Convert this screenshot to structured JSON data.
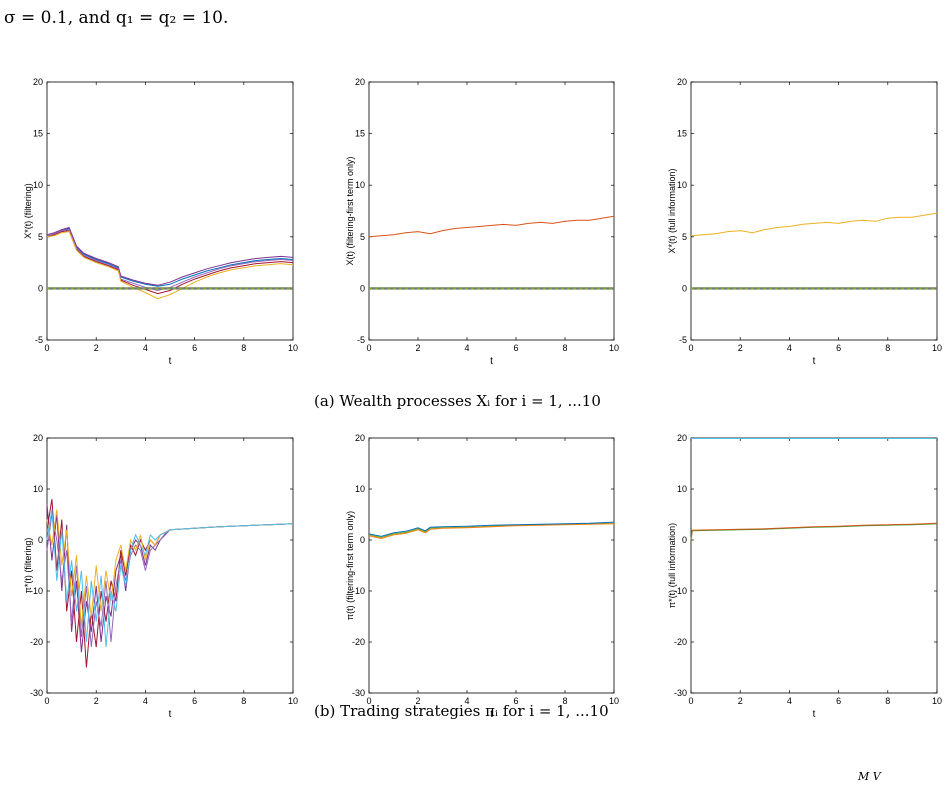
{
  "header_text": "σ = 0.1, and q₁ = q₂ = 10.",
  "captions": {
    "a": "(a) Wealth processes Xᵢ for i = 1, ...10",
    "b": "(b) Trading strategies πᵢ for i = 1, ...10"
  },
  "footer_fragment": "M     V",
  "colors": [
    "#0072bd",
    "#d95319",
    "#edb120",
    "#7e2f8e",
    "#77ac30",
    "#4dbeee",
    "#a2142f",
    "#ff7f0e",
    "#2ca02c",
    "#9467bd"
  ],
  "chart_data": [
    {
      "type": "line",
      "ylabel": "X*(t) (filtering)",
      "xlabel": "t",
      "xlim": [
        0,
        10
      ],
      "ylim": [
        -5,
        20
      ],
      "xticks": [
        0,
        2,
        4,
        6,
        8,
        10
      ],
      "yticks": [
        -5,
        0,
        5,
        10,
        15,
        20
      ],
      "zero_line": true,
      "series": [
        {
          "x": [
            0,
            0.3,
            0.6,
            0.9,
            1.0,
            1.2,
            1.5,
            2.0,
            2.5,
            2.9,
            3.0,
            3.5,
            4.0,
            4.5,
            5.0,
            5.5,
            6.0,
            6.5,
            7.0,
            7.5,
            8.0,
            8.5,
            9.0,
            9.5,
            10.0
          ],
          "y": [
            5.1,
            5.3,
            5.6,
            5.8,
            5.2,
            4.0,
            3.3,
            2.8,
            2.4,
            2.0,
            1.1,
            0.7,
            0.4,
            0.2,
            0.4,
            0.9,
            1.3,
            1.7,
            2.0,
            2.3,
            2.5,
            2.7,
            2.8,
            2.9,
            2.8
          ]
        },
        {
          "x": [
            0,
            0.3,
            0.6,
            0.9,
            1.0,
            1.2,
            1.5,
            2.0,
            2.5,
            2.9,
            3.0,
            3.5,
            4.0,
            4.5,
            5.0,
            5.5,
            6.0,
            6.5,
            7.0,
            7.5,
            8.0,
            8.5,
            9.0,
            9.5,
            10.0
          ],
          "y": [
            5.2,
            5.4,
            5.7,
            5.9,
            5.3,
            4.1,
            3.4,
            2.9,
            2.5,
            2.1,
            1.2,
            0.8,
            0.5,
            0.3,
            0.6,
            1.1,
            1.5,
            1.9,
            2.2,
            2.5,
            2.7,
            2.9,
            3.0,
            3.1,
            3.0
          ]
        },
        {
          "x": [
            0,
            0.3,
            0.6,
            0.9,
            1.0,
            1.2,
            1.5,
            2.0,
            2.5,
            2.9,
            3.0,
            3.5,
            4.0,
            4.5,
            5.0,
            5.5,
            6.0,
            6.5,
            7.0,
            7.5,
            8.0,
            8.5,
            9.0,
            9.5,
            10.0
          ],
          "y": [
            5.0,
            5.2,
            5.5,
            5.6,
            5.0,
            3.8,
            3.1,
            2.6,
            2.2,
            1.8,
            0.8,
            0.3,
            -0.1,
            -0.5,
            -0.2,
            0.4,
            0.9,
            1.3,
            1.7,
            2.0,
            2.2,
            2.4,
            2.5,
            2.6,
            2.5
          ]
        },
        {
          "x": [
            0,
            0.3,
            0.6,
            0.9,
            1.0,
            1.2,
            1.5,
            2.0,
            2.5,
            2.9,
            3.0,
            3.5,
            4.0,
            4.5,
            5.0,
            5.5,
            6.0,
            6.5,
            7.0,
            7.5,
            8.0,
            8.5,
            9.0,
            9.5,
            10.0
          ],
          "y": [
            5.1,
            5.3,
            5.6,
            5.7,
            5.1,
            3.9,
            3.2,
            2.7,
            2.3,
            1.9,
            0.9,
            0.5,
            0.1,
            -0.2,
            0.1,
            0.6,
            1.1,
            1.5,
            1.9,
            2.2,
            2.4,
            2.6,
            2.7,
            2.8,
            2.7
          ]
        },
        {
          "x": [
            0,
            0.3,
            0.6,
            0.9,
            1.0,
            1.2,
            1.5,
            2.0,
            2.5,
            2.9,
            3.0,
            3.5,
            4.0,
            4.5,
            5.0,
            5.5,
            6.0,
            6.5,
            7.0,
            7.5,
            8.0,
            8.5,
            9.0,
            9.5,
            10.0
          ],
          "y": [
            5.0,
            5.1,
            5.4,
            5.5,
            4.9,
            3.7,
            3.0,
            2.5,
            2.1,
            1.7,
            0.7,
            0.1,
            -0.4,
            -1.0,
            -0.6,
            0.0,
            0.6,
            1.1,
            1.5,
            1.8,
            2.0,
            2.2,
            2.3,
            2.4,
            2.3
          ]
        }
      ]
    },
    {
      "type": "line",
      "ylabel": "X(t) (filtering-first term only)",
      "xlabel": "t",
      "xlim": [
        0,
        10
      ],
      "ylim": [
        -5,
        20
      ],
      "xticks": [
        0,
        2,
        4,
        6,
        8,
        10
      ],
      "yticks": [
        -5,
        0,
        5,
        10,
        15,
        20
      ],
      "zero_line": true,
      "series": [
        {
          "x": [
            0,
            0.5,
            1.0,
            1.5,
            2.0,
            2.5,
            3.0,
            3.5,
            4.0,
            4.5,
            5.0,
            5.5,
            6.0,
            6.5,
            7.0,
            7.5,
            8.0,
            8.5,
            9.0,
            9.5,
            10.0
          ],
          "y": [
            5.0,
            5.1,
            5.2,
            5.4,
            5.5,
            5.3,
            5.6,
            5.8,
            5.9,
            6.0,
            6.1,
            6.2,
            6.1,
            6.3,
            6.4,
            6.3,
            6.5,
            6.6,
            6.6,
            6.8,
            7.0
          ]
        }
      ]
    },
    {
      "type": "line",
      "ylabel": "X*(t) (full information)",
      "xlabel": "t",
      "xlim": [
        0,
        10
      ],
      "ylim": [
        -5,
        20
      ],
      "xticks": [
        0,
        2,
        4,
        6,
        8,
        10
      ],
      "yticks": [
        -5,
        0,
        5,
        10,
        15,
        20
      ],
      "zero_line": true,
      "series": [
        {
          "x": [
            0,
            0.5,
            1.0,
            1.5,
            2.0,
            2.5,
            3.0,
            3.5,
            4.0,
            4.5,
            5.0,
            5.5,
            6.0,
            6.5,
            7.0,
            7.5,
            8.0,
            8.5,
            9.0,
            9.5,
            10.0
          ],
          "y": [
            5.1,
            5.2,
            5.3,
            5.5,
            5.6,
            5.4,
            5.7,
            5.9,
            6.0,
            6.2,
            6.3,
            6.4,
            6.3,
            6.5,
            6.6,
            6.5,
            6.8,
            6.9,
            6.9,
            7.1,
            7.3
          ]
        }
      ]
    },
    {
      "type": "line",
      "ylabel": "π*(t) (filtering)",
      "xlabel": "t",
      "xlim": [
        0,
        10
      ],
      "ylim": [
        -30,
        20
      ],
      "xticks": [
        0,
        2,
        4,
        6,
        8,
        10
      ],
      "yticks": [
        -30,
        -20,
        -10,
        0,
        10,
        20
      ],
      "series": [
        {
          "x": [
            0,
            0.2,
            0.4,
            0.6,
            0.8,
            1.0,
            1.2,
            1.4,
            1.6,
            1.8,
            2.0,
            2.2,
            2.4,
            2.6,
            2.8,
            3.0,
            3.2,
            3.4,
            3.6,
            3.8,
            4.0,
            4.2,
            4.4,
            4.6,
            4.8,
            5.0,
            6.0,
            7.0,
            8.0,
            9.0,
            10.0
          ],
          "y": [
            7,
            -4,
            5,
            -10,
            3,
            -18,
            -8,
            -22,
            -12,
            -18,
            -9,
            -20,
            -11,
            -15,
            -6,
            -3,
            -10,
            -2,
            0,
            -1,
            -5,
            -1,
            -2,
            0,
            1,
            2.0,
            2.3,
            2.6,
            2.8,
            3.0,
            3.2
          ]
        },
        {
          "x": [
            0,
            0.2,
            0.4,
            0.6,
            0.8,
            1.0,
            1.2,
            1.4,
            1.6,
            1.8,
            2.0,
            2.2,
            2.4,
            2.6,
            2.8,
            3.0,
            3.2,
            3.4,
            3.6,
            3.8,
            4.0,
            4.2,
            4.4,
            4.6,
            4.8,
            5.0,
            6.0,
            7.0,
            8.0,
            9.0,
            10.0
          ],
          "y": [
            2,
            8,
            -6,
            4,
            -14,
            -6,
            -20,
            -10,
            -25,
            -14,
            -21,
            -10,
            -16,
            -8,
            -12,
            -2,
            -7,
            -1,
            -3,
            0,
            -2,
            0,
            -1,
            1,
            1.5,
            2.0,
            2.3,
            2.6,
            2.8,
            3.0,
            3.2
          ]
        },
        {
          "x": [
            0,
            0.2,
            0.4,
            0.6,
            0.8,
            1.0,
            1.2,
            1.4,
            1.6,
            1.8,
            2.0,
            2.2,
            2.4,
            2.6,
            2.8,
            3.0,
            3.2,
            3.4,
            3.6,
            3.8,
            4.0,
            4.2,
            4.4,
            4.6,
            4.8,
            5.0,
            6.0,
            7.0,
            8.0,
            9.0,
            10.0
          ],
          "y": [
            -2,
            5,
            0,
            -8,
            -2,
            -16,
            -5,
            -19,
            -9,
            -21,
            -12,
            -17,
            -8,
            -20,
            -9,
            -4,
            -8,
            -3,
            -1,
            -2,
            -6,
            -2,
            -1,
            0,
            1.2,
            2.0,
            2.3,
            2.6,
            2.8,
            3.0,
            3.2
          ]
        },
        {
          "x": [
            0,
            0.2,
            0.4,
            0.6,
            0.8,
            1.0,
            1.2,
            1.4,
            1.6,
            1.8,
            2.0,
            2.2,
            2.4,
            2.6,
            2.8,
            3.0,
            3.2,
            3.4,
            3.6,
            3.8,
            4.0,
            4.2,
            4.4,
            4.6,
            4.8,
            5.0,
            6.0,
            7.0,
            8.0,
            9.0,
            10.0
          ],
          "y": [
            4,
            -1,
            6,
            -5,
            2,
            -11,
            -3,
            -17,
            -7,
            -15,
            -5,
            -14,
            -6,
            -12,
            -4,
            -1,
            -6,
            0,
            -2,
            1,
            -4,
            0,
            -1,
            1,
            1.5,
            2.0,
            2.3,
            2.6,
            2.8,
            3.0,
            3.2
          ]
        },
        {
          "x": [
            0,
            0.2,
            0.4,
            0.6,
            0.8,
            1.0,
            1.2,
            1.4,
            1.6,
            1.8,
            2.0,
            2.2,
            2.4,
            2.6,
            2.8,
            3.0,
            3.2,
            3.4,
            3.6,
            3.8,
            4.0,
            4.2,
            4.4,
            4.6,
            4.8,
            5.0,
            6.0,
            7.0,
            8.0,
            9.0,
            10.0
          ],
          "y": [
            0,
            6,
            -8,
            2,
            -12,
            -4,
            -14,
            -6,
            -20,
            -8,
            -16,
            -7,
            -21,
            -10,
            -14,
            -5,
            -9,
            -2,
            1,
            -1,
            -3,
            1,
            0,
            1,
            1.4,
            2.0,
            2.3,
            2.6,
            2.8,
            3.0,
            3.2
          ]
        }
      ]
    },
    {
      "type": "line",
      "ylabel": "π(t) (filtering-first term only)",
      "xlabel": "t",
      "xlim": [
        0,
        10
      ],
      "ylim": [
        -30,
        20
      ],
      "xticks": [
        0,
        2,
        4,
        6,
        8,
        10
      ],
      "yticks": [
        -30,
        -20,
        -10,
        0,
        10,
        20
      ],
      "series": [
        {
          "x": [
            0,
            0.5,
            1.0,
            1.5,
            2.0,
            2.3,
            2.5,
            3.0,
            4.0,
            5.0,
            6.0,
            7.0,
            8.0,
            9.0,
            10.0
          ],
          "y": [
            1.0,
            0.5,
            1.2,
            1.5,
            2.2,
            1.6,
            2.3,
            2.4,
            2.5,
            2.7,
            2.9,
            3.0,
            3.1,
            3.2,
            3.3
          ]
        },
        {
          "x": [
            0,
            0.5,
            1.0,
            1.5,
            2.0,
            2.3,
            2.5,
            3.0,
            4.0,
            5.0,
            6.0,
            7.0,
            8.0,
            9.0,
            10.0
          ],
          "y": [
            0.8,
            0.3,
            1.0,
            1.3,
            2.0,
            1.4,
            2.1,
            2.3,
            2.4,
            2.6,
            2.8,
            2.9,
            3.0,
            3.1,
            3.2
          ]
        },
        {
          "x": [
            0,
            0.5,
            1.0,
            1.5,
            2.0,
            2.3,
            2.5,
            3.0,
            4.0,
            5.0,
            6.0,
            7.0,
            8.0,
            9.0,
            10.0
          ],
          "y": [
            1.2,
            0.7,
            1.4,
            1.7,
            2.4,
            1.8,
            2.5,
            2.6,
            2.7,
            2.9,
            3.0,
            3.1,
            3.2,
            3.3,
            3.5
          ]
        }
      ]
    },
    {
      "type": "line",
      "ylabel": "π*(t) (full information)",
      "xlabel": "t",
      "xlim": [
        0,
        10
      ],
      "ylim": [
        -30,
        20
      ],
      "xticks": [
        0,
        2,
        4,
        6,
        8,
        10
      ],
      "yticks": [
        -30,
        -20,
        -10,
        0,
        10,
        20
      ],
      "series": [
        {
          "x": [
            0,
            10
          ],
          "y": [
            19.9,
            19.9
          ]
        },
        {
          "x": [
            0,
            0.05,
            1,
            2,
            3,
            4,
            5,
            6,
            7,
            8,
            9,
            10
          ],
          "y": [
            0.0,
            1.8,
            1.9,
            2.0,
            2.1,
            2.3,
            2.5,
            2.6,
            2.8,
            2.9,
            3.0,
            3.2
          ]
        },
        {
          "x": [
            0,
            0.05,
            1,
            2,
            3,
            4,
            5,
            6,
            7,
            8,
            9,
            10
          ],
          "y": [
            0.0,
            1.9,
            2.0,
            2.1,
            2.2,
            2.4,
            2.6,
            2.7,
            2.9,
            3.0,
            3.1,
            3.3
          ]
        }
      ]
    }
  ]
}
